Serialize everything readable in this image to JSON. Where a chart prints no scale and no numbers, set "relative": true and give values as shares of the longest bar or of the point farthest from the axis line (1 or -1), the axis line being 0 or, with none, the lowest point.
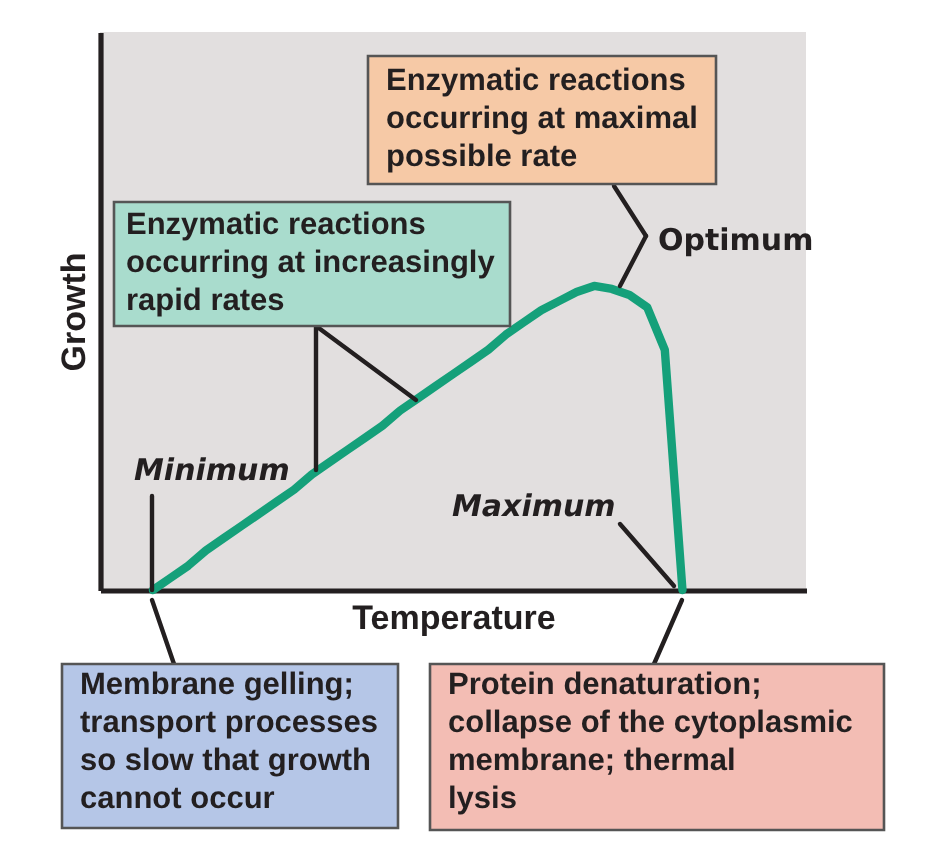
{
  "chart_data": {
    "type": "line",
    "relative": true,
    "xlabel": "Temperature",
    "ylabel": "Growth",
    "line_style": "solid",
    "categories": [
      null,
      null,
      null,
      null,
      null,
      null,
      null,
      null,
      null,
      null,
      null,
      null,
      null,
      null,
      null,
      null,
      null,
      null,
      null,
      null,
      null,
      null,
      null,
      null,
      null,
      null,
      null,
      null,
      null,
      null,
      null,
      null,
      null,
      null,
      null,
      null,
      null,
      null,
      null,
      null,
      null
    ],
    "series": [
      {
        "color": "#15a07a",
        "values": [
          null,
          null,
          null,
          0,
          0.04,
          0.08,
          0.13,
          0.17,
          0.21,
          0.25,
          0.29,
          0.33,
          0.38,
          0.42,
          0.46,
          0.5,
          0.54,
          0.59,
          0.63,
          0.67,
          0.71,
          0.75,
          0.79,
          0.84,
          0.88,
          0.92,
          0.95,
          0.98,
          1,
          0.99,
          0.97,
          0.93,
          0.79,
          0,
          null,
          null,
          null,
          null,
          null,
          null,
          null
        ]
      }
    ],
    "annotations": [
      "Enzymatic reactions\noccurring at maximal\npossible rate",
      "Optimum",
      "Enzymatic reactions\noccurring at increasingly\nrapid rates",
      "Minimum",
      "Maximum",
      "Membrane gelling;\ntransport processes\nso slow that growth\ncannot occur",
      "Protein denaturation;\ncollapse of the cytoplasmic\nmembrane; thermal\nlysis"
    ]
  }
}
